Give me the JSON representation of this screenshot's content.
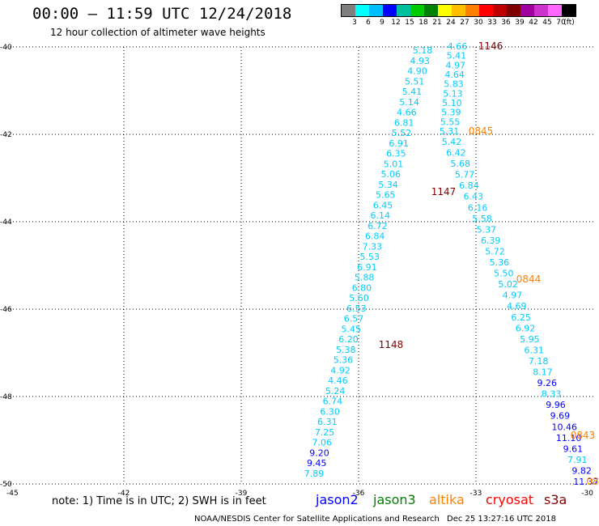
{
  "header": {
    "title": "00:00 – 11:59 UTC 12/24/2018",
    "subtitle": "12 hour collection of altimeter wave heights"
  },
  "legend": {
    "colors": [
      "#7f7f7f",
      "#00ffff",
      "#00bfff",
      "#0000ff",
      "#00bf9f",
      "#00cc00",
      "#008000",
      "#ffff00",
      "#ffbf00",
      "#ff8000",
      "#ff0000",
      "#c00000",
      "#800000",
      "#a000a0",
      "#cc33cc",
      "#ff66ff",
      "#000000"
    ],
    "labels": [
      "3",
      "6",
      "9",
      "12",
      "15",
      "18",
      "21",
      "24",
      "27",
      "30",
      "33",
      "36",
      "39",
      "42",
      "45",
      "70",
      "(ft)"
    ]
  },
  "axes": {
    "x_ticks": [
      "-45",
      "-42",
      "-39",
      "-36",
      "-33",
      "-30"
    ],
    "y_ticks": [
      "-40",
      "-42",
      "-44",
      "-46",
      "-48",
      "-50"
    ]
  },
  "tracks": {
    "west": [
      "5.18",
      "4.93",
      "4.90",
      "5.51",
      "5.41",
      "5.14",
      "4.66",
      "6.81",
      "5.52",
      "6.91",
      "6.35",
      "5.01",
      "5.06",
      "5.34",
      "5.65",
      "6.45",
      "6.14",
      "6.72",
      "6.84",
      "7.33",
      "5.53",
      "6.91",
      "5.88",
      "6.80",
      "5.60",
      "6.53",
      "6.57",
      "5.45",
      "6.20",
      "5.38",
      "5.36",
      "4.92",
      "4.46",
      "5.24",
      "6.74",
      "6.30",
      "6.31",
      "7.25",
      "7.06",
      "9.20",
      "9.45",
      "7.89"
    ],
    "west_colors": [
      "c",
      "c",
      "c",
      "c",
      "c",
      "c",
      "c",
      "c",
      "c",
      "c",
      "c",
      "c",
      "c",
      "c",
      "c",
      "c",
      "c",
      "c",
      "c",
      "c",
      "c",
      "c",
      "c",
      "c",
      "c",
      "c",
      "c",
      "c",
      "c",
      "c",
      "c",
      "c",
      "c",
      "c",
      "c",
      "c",
      "c",
      "c",
      "c",
      "b",
      "b",
      "c"
    ],
    "top": [
      "4.66",
      "5.41",
      "4.97",
      "4.64",
      "5.83",
      "5.13",
      "5.10",
      "5.39",
      "5.55",
      "5.31"
    ],
    "east": [
      "5.42",
      "6.42",
      "5.68",
      "5.77",
      "6.84",
      "6.43",
      "6.16",
      "5.58",
      "5.37",
      "6.39",
      "5.72",
      "5.36",
      "5.50",
      "5.02",
      "4.97",
      "4.69",
      "6.25",
      "6.92",
      "5.95",
      "6.31",
      "7.18",
      "8.17",
      "9.26",
      "8.33",
      "9.96",
      "9.69",
      "10.46",
      "11.10",
      "9.61",
      "7.91",
      "9.82",
      "11.37"
    ],
    "east_colors": [
      "c",
      "c",
      "c",
      "c",
      "c",
      "c",
      "c",
      "c",
      "c",
      "c",
      "c",
      "c",
      "c",
      "c",
      "c",
      "c",
      "c",
      "c",
      "c",
      "c",
      "c",
      "c",
      "b",
      "c",
      "b",
      "b",
      "b",
      "b",
      "b",
      "c",
      "b",
      "b"
    ],
    "time_labels": [
      {
        "text": "1146",
        "color": "#800000"
      },
      {
        "text": "0845",
        "color": "#ff8000"
      },
      {
        "text": "1147",
        "color": "#800000"
      },
      {
        "text": "0844",
        "color": "#ff8000"
      },
      {
        "text": "1148",
        "color": "#800000"
      },
      {
        "text": "0843",
        "color": "#ff8000"
      },
      {
        "text": "08",
        "color": "#ff8000"
      }
    ]
  },
  "footer": {
    "note": "note: 1) Time is in UTC; 2) SWH is in feet",
    "satellites": [
      {
        "name": "jason2",
        "color": "#0000ff"
      },
      {
        "name": "jason3",
        "color": "#008000"
      },
      {
        "name": "altika",
        "color": "#ff8000"
      },
      {
        "name": "cryosat",
        "color": "#ff0000"
      },
      {
        "name": "s3a",
        "color": "#800000"
      }
    ],
    "credit": "NOAA/NESDIS Center for Satellite Applications and Research",
    "timestamp": "Dec 25 13:27:16 UTC 2018"
  }
}
